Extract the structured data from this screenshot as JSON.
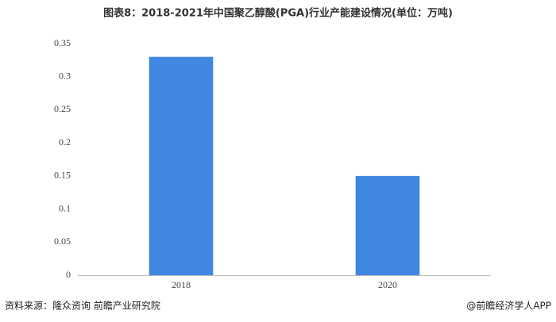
{
  "chart_data": {
    "type": "bar",
    "title": "图表8：2018-2021年中国聚乙醇酸(PGA)行业产能建设情况(单位：万吨)",
    "categories": [
      "2018",
      "2020"
    ],
    "values": [
      0.33,
      0.15
    ],
    "color": "#3f87e0",
    "ylim": [
      0,
      0.35
    ],
    "yticks": [
      0,
      0.05,
      0.1,
      0.15,
      0.2,
      0.25,
      0.3,
      0.35
    ],
    "grid": false,
    "source": "资料来源：隆众资询 前瞻产业研究院",
    "credit": "@前瞻经济学人APP"
  }
}
